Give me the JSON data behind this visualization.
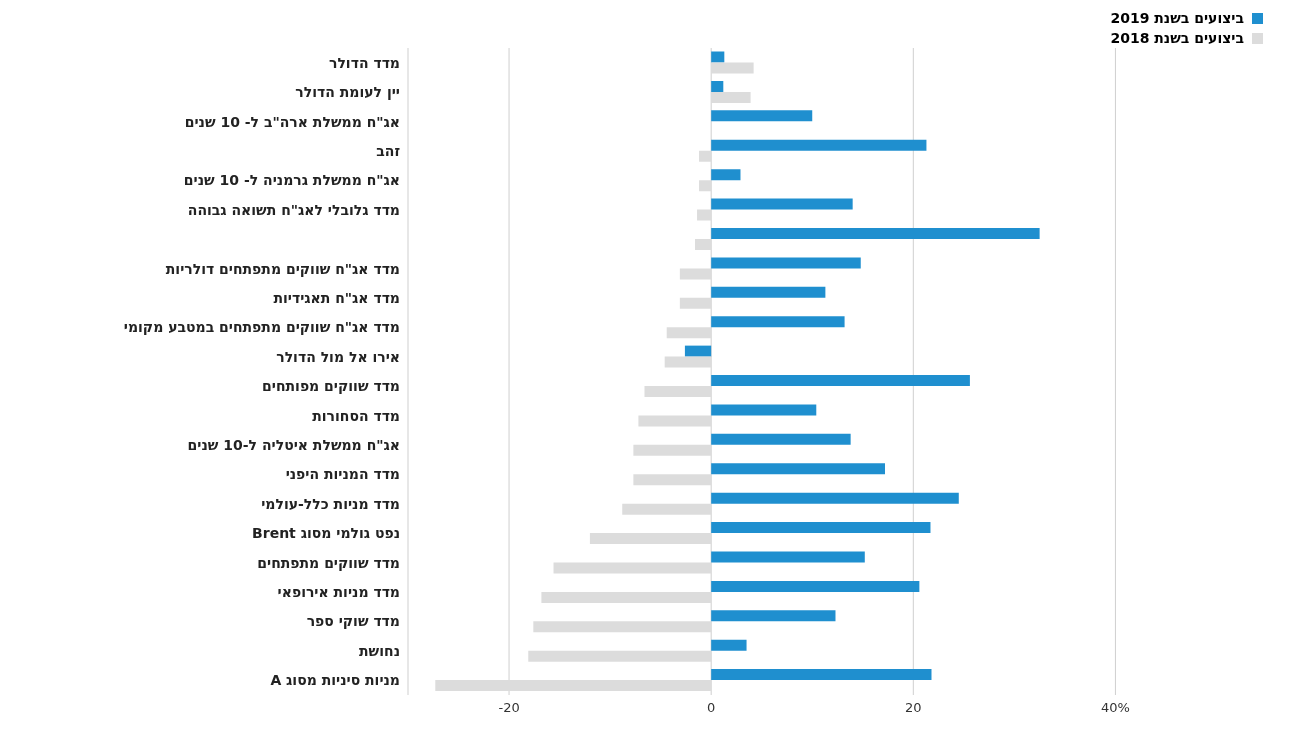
{
  "chart_data": {
    "type": "bar",
    "orientation": "horizontal",
    "categories": [
      "מדד הדולר",
      "יין לעומת הדולר",
      "אג\"ח ממשלת ארה\"ב ל- 10 שנים",
      "זהב",
      "אג\"ח ממשלת גרמניה ל- 10 שנים",
      "מדד גלובלי לאג\"ח תשואה גבוהה",
      null,
      "מדד אג\"ח שווקים מתפתחים דולריות",
      "מדד אג\"ח תאגידיות",
      "מדד אג\"ח שווקים מתפתחים במטבע מקומי",
      "אירו אל מול הדולר",
      "מדד שווקים מפותחים",
      "מדד הסחורות",
      "אג\"ח ממשלת איטליה ל-10 שנים",
      "מדד המניות היפני",
      "מדד מניות כלל-עולמי",
      "נפט גולמי מסוג Brent",
      "מדד שווקים מתפתחים",
      "מדד מניות אירופאי",
      "מדד שוקי ספר",
      "נחושת",
      "מניות סיניות מסוג A"
    ],
    "series": [
      {
        "name": "ביצועים בשנת 2019",
        "color": "#1f8fcf",
        "values": [
          1.3,
          1.2,
          10.0,
          21.3,
          2.9,
          14.0,
          32.5,
          14.8,
          11.3,
          13.2,
          -2.6,
          25.6,
          10.4,
          13.8,
          17.2,
          24.5,
          21.7,
          15.2,
          20.6,
          12.3,
          3.5,
          21.8
        ]
      },
      {
        "name": "ביצועים בשנת 2018",
        "color": "#dcdcdc",
        "values": [
          4.2,
          3.9,
          0,
          -1.2,
          -1.2,
          -1.4,
          -1.6,
          -3.1,
          -3.1,
          -4.4,
          -4.6,
          -6.6,
          -7.2,
          -7.7,
          -7.7,
          -8.8,
          -12.0,
          -15.6,
          -16.8,
          -17.6,
          -18.1,
          -27.3
        ]
      }
    ],
    "xlim": [
      -30,
      40
    ],
    "xticks": [
      -20,
      0,
      20,
      {
        "value": 40,
        "label": "40%"
      }
    ],
    "grid": "x",
    "legend": "top right"
  }
}
